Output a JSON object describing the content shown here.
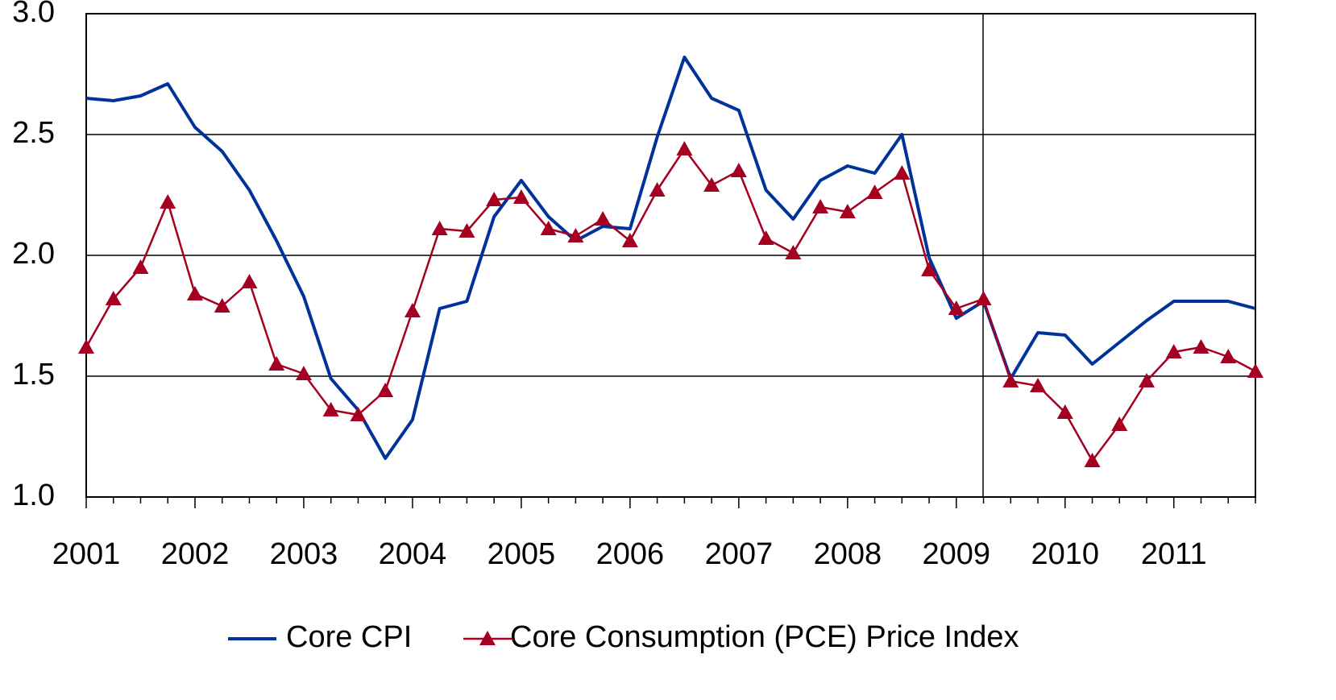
{
  "chart_data": {
    "type": "line",
    "categories": [
      "2001",
      null,
      null,
      null,
      "2002",
      null,
      null,
      null,
      "2003",
      null,
      null,
      null,
      "2004",
      null,
      null,
      null,
      "2005",
      null,
      null,
      null,
      "2006",
      null,
      null,
      null,
      "2007",
      null,
      null,
      null,
      "2008",
      null,
      null,
      null,
      "2009",
      null,
      null,
      null,
      "2010",
      null,
      null,
      null,
      "2011",
      null,
      null,
      null
    ],
    "series": [
      {
        "name": "Core CPI",
        "color": "#003399",
        "marker": "none",
        "values": [
          2.65,
          2.64,
          2.66,
          2.71,
          2.53,
          2.43,
          2.27,
          2.06,
          1.83,
          1.49,
          1.36,
          1.16,
          1.32,
          1.78,
          1.81,
          2.16,
          2.31,
          2.16,
          2.06,
          2.12,
          2.11,
          2.49,
          2.82,
          2.65,
          2.6,
          2.27,
          2.15,
          2.31,
          2.37,
          2.34,
          2.5,
          1.99,
          1.74,
          1.81,
          1.49,
          1.68,
          1.67,
          1.55,
          1.64,
          1.73,
          1.81,
          1.81,
          1.81,
          1.78
        ]
      },
      {
        "name": "Core Consumption (PCE) Price Index",
        "color": "#a50021",
        "marker": "triangle",
        "values": [
          1.62,
          1.82,
          1.95,
          2.22,
          1.84,
          1.79,
          1.89,
          1.55,
          1.51,
          1.36,
          1.34,
          1.44,
          1.77,
          2.11,
          2.1,
          2.23,
          2.24,
          2.11,
          2.08,
          2.15,
          2.06,
          2.27,
          2.44,
          2.29,
          2.35,
          2.07,
          2.01,
          2.2,
          2.18,
          2.26,
          2.34,
          1.94,
          1.78,
          1.82,
          1.48,
          1.46,
          1.35,
          1.15,
          1.3,
          1.48,
          1.6,
          1.62,
          1.58,
          1.52
        ]
      }
    ],
    "ylim": [
      1.0,
      3.0
    ],
    "yticks": [
      {
        "value": 1.0,
        "label": "1.0"
      },
      {
        "value": 1.5,
        "label": "1.5"
      },
      {
        "value": 2.0,
        "label": "2.0"
      },
      {
        "value": 2.5,
        "label": "2.5"
      },
      {
        "value": 3.0,
        "label": "3.0"
      }
    ],
    "grid": true,
    "legend": "bottom"
  }
}
